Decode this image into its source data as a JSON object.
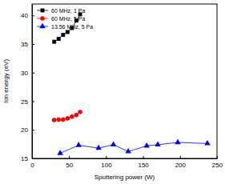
{
  "chart_data": {
    "type": "line",
    "x_label": "Sputtering power (W)",
    "y_label": "Ion energy (eV)",
    "xlim": [
      0,
      250
    ],
    "xticks": [
      0,
      50,
      100,
      150,
      200,
      250
    ],
    "ylim": [
      15,
      42
    ],
    "yticks": [
      15,
      20,
      25,
      30,
      35,
      40
    ],
    "legend": "upper left",
    "series": [
      {
        "name": "60 MHz, 1 Pa",
        "color": "#000000",
        "marker": "square",
        "line_style": "solid",
        "x": [
          30,
          36,
          42,
          48,
          54,
          60,
          65
        ],
        "values": [
          35.4,
          35.9,
          36.6,
          37.1,
          37.8,
          39.1,
          40.2
        ]
      },
      {
        "name": "60 MHz, 5 Pa",
        "color": "#ff0000",
        "marker": "circle",
        "line_style": "solid",
        "x": [
          30,
          36,
          42,
          48,
          54,
          60,
          65
        ],
        "values": [
          21.7,
          21.8,
          21.8,
          22.0,
          22.3,
          22.6,
          23.1
        ]
      },
      {
        "name": "13.56 MHz, 5 Pa",
        "color": "#0000ff",
        "marker": "triangle",
        "line_style": "solid",
        "x": [
          38,
          63,
          90,
          110,
          130,
          155,
          170,
          197,
          237
        ],
        "values": [
          15.9,
          17.3,
          16.8,
          17.4,
          16.2,
          17.2,
          17.4,
          17.8,
          17.6
        ]
      }
    ]
  }
}
